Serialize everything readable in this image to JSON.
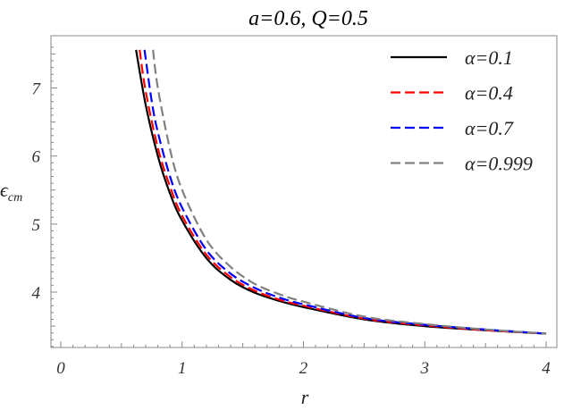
{
  "chart_data": {
    "type": "line",
    "title": "a=0.6, Q=0.5",
    "xlabel": "r",
    "ylabel_main": "ϵ",
    "ylabel_sub": "cm",
    "xlim": [
      0,
      4
    ],
    "ylim": [
      3.2,
      7.6
    ],
    "xticks": [
      "0",
      "1",
      "2",
      "3",
      "4"
    ],
    "yticks": [
      "4",
      "5",
      "6",
      "7"
    ],
    "grid": false,
    "legend_position": "top-right",
    "series": [
      {
        "name": "α=0.1",
        "color": "#000000",
        "dash": "solid",
        "x": [
          0.62,
          0.7,
          0.8,
          0.9,
          1.0,
          1.2,
          1.4,
          1.6,
          1.8,
          2.0,
          2.5,
          3.0,
          3.5,
          4.0
        ],
        "y": [
          7.56,
          6.75,
          6.0,
          5.45,
          5.05,
          4.5,
          4.18,
          3.99,
          3.87,
          3.78,
          3.6,
          3.5,
          3.44,
          3.39
        ]
      },
      {
        "name": "α=0.4",
        "color": "#ff0000",
        "dash": "dashed",
        "x": [
          0.65,
          0.7,
          0.8,
          0.9,
          1.0,
          1.2,
          1.4,
          1.6,
          1.8,
          2.0,
          2.5,
          3.0,
          3.5,
          4.0
        ],
        "y": [
          7.56,
          6.95,
          6.12,
          5.55,
          5.12,
          4.55,
          4.22,
          4.02,
          3.89,
          3.8,
          3.61,
          3.51,
          3.44,
          3.39
        ]
      },
      {
        "name": "α=0.7",
        "color": "#0000ff",
        "dash": "dashed",
        "x": [
          0.69,
          0.75,
          0.8,
          0.9,
          1.0,
          1.2,
          1.4,
          1.6,
          1.8,
          2.0,
          2.5,
          3.0,
          3.5,
          4.0
        ],
        "y": [
          7.56,
          6.8,
          6.35,
          5.7,
          5.24,
          4.62,
          4.27,
          4.06,
          3.92,
          3.82,
          3.62,
          3.52,
          3.45,
          3.39
        ]
      },
      {
        "name": "α=0.999",
        "color": "#808080",
        "dash": "dashed",
        "x": [
          0.76,
          0.8,
          0.9,
          1.0,
          1.2,
          1.4,
          1.6,
          1.8,
          2.0,
          2.5,
          3.0,
          3.5,
          4.0
        ],
        "y": [
          7.56,
          7.0,
          6.1,
          5.5,
          4.77,
          4.37,
          4.12,
          3.97,
          3.86,
          3.64,
          3.53,
          3.45,
          3.39
        ]
      }
    ]
  }
}
